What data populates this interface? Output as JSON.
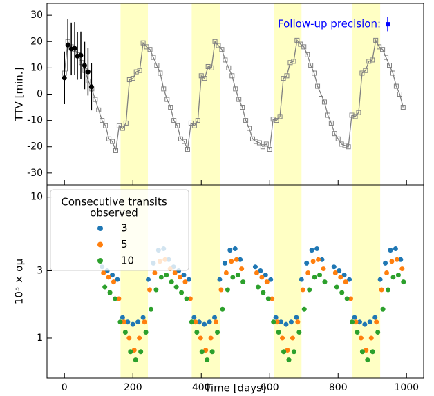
{
  "shaded_regions": [
    [
      164,
      244
    ],
    [
      372,
      455
    ],
    [
      612,
      693
    ],
    [
      842,
      923
    ]
  ],
  "chart_data": [
    {
      "type": "line",
      "ylabel": "TTV [min.]",
      "xlim": [
        -51,
        1050
      ],
      "xticks": [
        0,
        200,
        400,
        600,
        800,
        1000
      ],
      "ylim": [
        -34.5,
        34.5
      ],
      "yticks": [
        -30,
        -20,
        -10,
        0,
        10,
        20,
        30
      ],
      "series": [
        {
          "color": "#808080",
          "marker": "square",
          "x": [
            0,
            10,
            20,
            30,
            40,
            50,
            60,
            70,
            80,
            90,
            100,
            110,
            120,
            130,
            140,
            150,
            160,
            170,
            180,
            190,
            200,
            210,
            220,
            230,
            240,
            250,
            260,
            270,
            280,
            290,
            300,
            310,
            320,
            330,
            340,
            350,
            360,
            370,
            380,
            390,
            400,
            410,
            420,
            430,
            440,
            450,
            460,
            470,
            480,
            490,
            500,
            510,
            520,
            530,
            540,
            550,
            560,
            570,
            580,
            590,
            600,
            610,
            620,
            630,
            640,
            650,
            660,
            670,
            680,
            690,
            700,
            710,
            720,
            730,
            740,
            750,
            760,
            770,
            780,
            790,
            800,
            810,
            820,
            830,
            840,
            850,
            860,
            870,
            880,
            890,
            900,
            910,
            920,
            930,
            940,
            950,
            960,
            970,
            980,
            990
          ],
          "values": [
            8,
            20,
            18,
            17,
            15,
            12,
            9,
            5,
            2,
            -2,
            -6,
            -10,
            -12,
            -17,
            -18,
            -21.5,
            -12,
            -13,
            -11,
            5.5,
            6,
            8.5,
            9,
            19.5,
            18,
            17,
            14,
            11,
            8,
            2,
            -2,
            -5,
            -10,
            -12,
            -17,
            -18,
            -21,
            -11,
            -12,
            -10,
            7,
            6,
            10.5,
            10,
            20,
            18.5,
            17,
            13,
            10,
            7,
            2,
            -2,
            -5,
            -10,
            -13,
            -17,
            -18,
            -18.5,
            -20,
            -19,
            -21,
            -9.5,
            -10,
            -8.5,
            6,
            7,
            12,
            12.5,
            20.5,
            19,
            18,
            15,
            11,
            8,
            3,
            0,
            -3,
            -8,
            -11,
            -15,
            -17,
            -19,
            -19.5,
            -20,
            -8,
            -8.5,
            -7,
            8,
            9,
            12.5,
            13,
            20.5,
            18,
            17,
            14,
            11,
            8,
            3,
            0,
            -5
          ]
        },
        {
          "color": "#000000",
          "marker": "circle",
          "x": [
            0,
            10,
            20,
            30,
            38,
            48,
            59,
            69,
            79
          ],
          "values": [
            6.2,
            18.7,
            17.2,
            17.4,
            14.5,
            14.8,
            10.9,
            8.5,
            2.8
          ],
          "errors": [
            10,
            10,
            10,
            10,
            9,
            9,
            9,
            9,
            9
          ]
        }
      ],
      "annotation": {
        "text": "Follow-up precision:",
        "x": 945,
        "y": 26.6,
        "error": 2.7,
        "color": "#0000ff"
      }
    },
    {
      "type": "scatter",
      "xlabel": "Time [days]",
      "ylabel": "10⁵ × σμ",
      "log_y": true,
      "xlim": [
        -51,
        1050
      ],
      "xticks": [
        0,
        200,
        400,
        600,
        800,
        1000
      ],
      "ylim": [
        0.52,
        12.2
      ],
      "yticks": [
        1,
        3,
        10
      ],
      "legend_title": [
        "Consecutive transits",
        "observed"
      ],
      "x": [
        114,
        129,
        144,
        159,
        174,
        189,
        204,
        219,
        234,
        249,
        264,
        279,
        294,
        309,
        323,
        338,
        353,
        368,
        383,
        398,
        413,
        428,
        443,
        458,
        473,
        488,
        503,
        518,
        562,
        577,
        592,
        607,
        622,
        637,
        652,
        667,
        682,
        697,
        712,
        727,
        742,
        757,
        792,
        807,
        822,
        837,
        852,
        867,
        882,
        897,
        912,
        927,
        942,
        957,
        972,
        987
      ],
      "series": [
        {
          "name": "3",
          "color": "#1f77b4",
          "values": [
            3.2,
            3.0,
            2.8,
            2.6,
            1.4,
            1.3,
            1.25,
            1.3,
            1.4,
            2.6,
            3.4,
            4.2,
            4.3,
            3.6,
            3.2,
            3.0,
            2.8,
            2.6,
            1.4,
            1.3,
            1.25,
            1.3,
            1.4,
            2.6,
            3.4,
            4.2,
            4.3,
            3.6,
            3.2,
            3.0,
            2.8,
            2.6,
            1.4,
            1.3,
            1.25,
            1.3,
            1.4,
            2.6,
            3.4,
            4.2,
            4.3,
            3.6,
            3.2,
            3.0,
            2.8,
            2.6,
            1.4,
            1.3,
            1.25,
            1.3,
            1.4,
            2.6,
            3.4,
            4.2,
            4.3,
            3.6
          ]
        },
        {
          "name": "5",
          "color": "#ff7f0e",
          "values": [
            2.9,
            2.7,
            2.5,
            1.9,
            1.3,
            1.0,
            0.82,
            1.0,
            1.3,
            2.2,
            2.9,
            3.5,
            3.6,
            3.1,
            2.9,
            2.7,
            2.5,
            1.9,
            1.3,
            1.0,
            0.82,
            1.0,
            1.3,
            2.2,
            2.9,
            3.5,
            3.6,
            3.1,
            2.9,
            2.7,
            2.5,
            1.9,
            1.3,
            1.0,
            0.82,
            1.0,
            1.3,
            2.2,
            2.9,
            3.5,
            3.6,
            3.1,
            2.9,
            2.7,
            2.5,
            1.9,
            1.3,
            1.0,
            0.82,
            1.0,
            1.3,
            2.2,
            2.9,
            3.5,
            3.6,
            3.1
          ]
        },
        {
          "name": "10",
          "color": "#2ca02c",
          "values": [
            2.3,
            2.1,
            1.9,
            1.3,
            1.1,
            0.8,
            0.7,
            0.8,
            1.1,
            1.6,
            2.2,
            2.7,
            2.8,
            2.5,
            2.3,
            2.1,
            1.9,
            1.3,
            1.1,
            0.8,
            0.7,
            0.8,
            1.1,
            1.6,
            2.2,
            2.7,
            2.8,
            2.5,
            2.3,
            2.1,
            1.9,
            1.3,
            1.1,
            0.8,
            0.7,
            0.8,
            1.1,
            1.6,
            2.2,
            2.7,
            2.8,
            2.5,
            2.3,
            2.1,
            1.9,
            1.3,
            1.1,
            0.8,
            0.7,
            0.8,
            1.1,
            1.6,
            2.2,
            2.7,
            2.8,
            2.5
          ]
        }
      ]
    }
  ]
}
